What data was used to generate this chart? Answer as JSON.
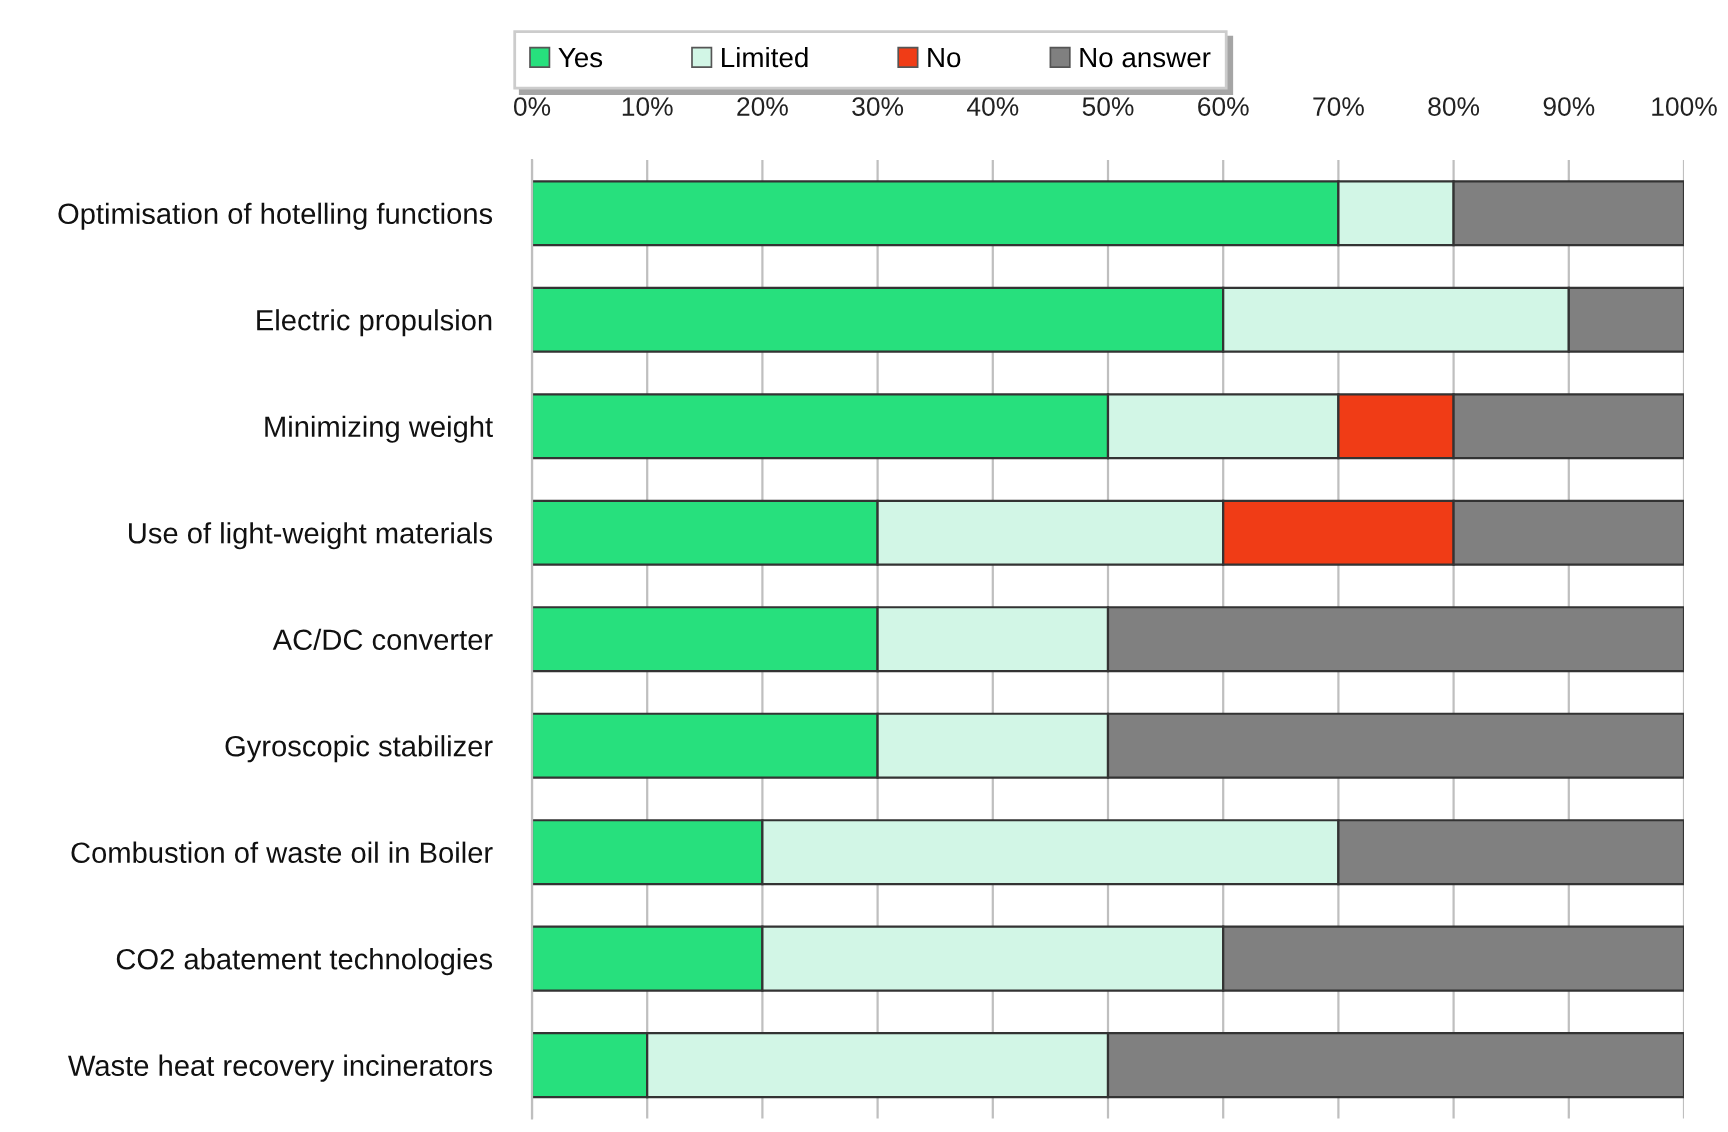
{
  "chart_data": {
    "type": "bar",
    "orientation": "horizontal",
    "stacked": true,
    "categories": [
      "Optimisation of hotelling functions",
      "Electric propulsion",
      "Minimizing weight",
      "Use of light-weight materials",
      "AC/DC converter",
      "Gyroscopic stabilizer",
      "Combustion of waste oil in Boiler",
      "CO2 abatement technologies",
      "Waste heat recovery incinerators"
    ],
    "series": [
      {
        "name": "Yes",
        "color": "#27e07d",
        "values": [
          70,
          60,
          50,
          30,
          30,
          30,
          20,
          20,
          10
        ]
      },
      {
        "name": "Limited",
        "color": "#d2f6e6",
        "values": [
          10,
          30,
          20,
          30,
          20,
          20,
          50,
          40,
          40
        ]
      },
      {
        "name": "No",
        "color": "#f03c16",
        "values": [
          0,
          0,
          10,
          20,
          0,
          0,
          0,
          0,
          0
        ]
      },
      {
        "name": "No answer",
        "color": "#808080",
        "values": [
          20,
          10,
          20,
          20,
          50,
          50,
          30,
          40,
          50
        ]
      }
    ],
    "xlim": [
      0,
      100
    ],
    "xticks": [
      {
        "value": 0,
        "label": "0%"
      },
      {
        "value": 10,
        "label": "10%"
      },
      {
        "value": 20,
        "label": "20%"
      },
      {
        "value": 30,
        "label": "30%"
      },
      {
        "value": 40,
        "label": "40%"
      },
      {
        "value": 50,
        "label": "50%"
      },
      {
        "value": 60,
        "label": "60%"
      },
      {
        "value": 70,
        "label": "70%"
      },
      {
        "value": 80,
        "label": "80%"
      },
      {
        "value": 90,
        "label": "90%"
      },
      {
        "value": 100,
        "label": "100%"
      }
    ],
    "grid": "x",
    "legend": "top"
  }
}
